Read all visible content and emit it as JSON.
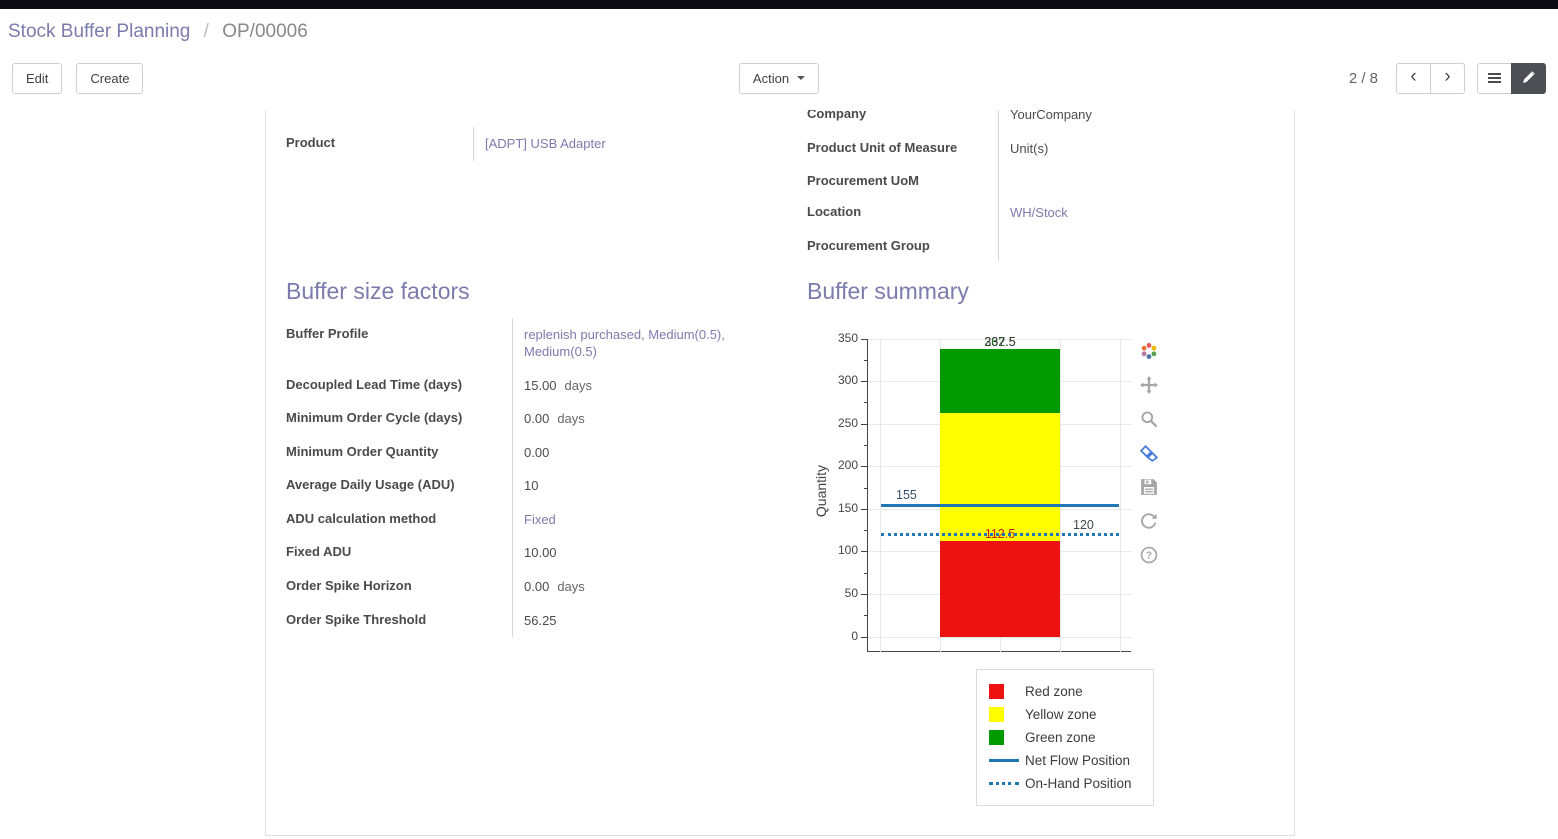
{
  "colors": {
    "accent": "#7c7bad",
    "topbar": "#0b0b11",
    "red_zone": "#ee1111",
    "yellow_zone": "#ffff00",
    "green_zone": "#009a00",
    "flow_line": "#1f77b4"
  },
  "breadcrumb": {
    "parent": "Stock Buffer Planning",
    "separator": "/",
    "current": "OP/00006"
  },
  "control_panel": {
    "edit_label": "Edit",
    "create_label": "Create",
    "action_label": "Action",
    "pager": "2 / 8",
    "prev_icon": "chevron-left",
    "next_icon": "chevron-right",
    "view_switcher_icons": [
      "list-view",
      "form-view"
    ],
    "active_view": "form-view"
  },
  "form": {
    "top_left_fields": [
      {
        "label": "Product",
        "value": "[ADPT] USB Adapter",
        "link": true
      }
    ],
    "top_right_fields": [
      {
        "label": "Company",
        "value": "YourCompany",
        "link": false,
        "clipped": true
      },
      {
        "label": "Product Unit of Measure",
        "value": "Unit(s)",
        "link": false
      },
      {
        "label": "Procurement UoM",
        "value": "",
        "link": false
      },
      {
        "label": "Location",
        "value": "WH/Stock",
        "link": true
      },
      {
        "label": "Procurement Group",
        "value": "",
        "link": false
      }
    ],
    "buffer_factors": {
      "title": "Buffer size factors",
      "rows": [
        {
          "label": "Buffer Profile",
          "value": "replenish purchased, Medium(0.5), Medium(0.5)",
          "link": true
        },
        {
          "label": "Decoupled Lead Time (days)",
          "value": "15.00",
          "suffix": "days"
        },
        {
          "label": "Minimum Order Cycle (days)",
          "value": "0.00",
          "suffix": "days"
        },
        {
          "label": "Minimum Order Quantity",
          "value": "0.00"
        },
        {
          "label": "Average Daily Usage (ADU)",
          "value": "10"
        },
        {
          "label": "ADU calculation method",
          "value": "Fixed",
          "link": true
        },
        {
          "label": "Fixed ADU",
          "value": "10.00"
        },
        {
          "label": "Order Spike Horizon",
          "value": "0.00",
          "suffix": "days"
        },
        {
          "label": "Order Spike Threshold",
          "value": "56.25"
        }
      ]
    },
    "buffer_summary_title": "Buffer summary"
  },
  "chart_data": {
    "type": "bar",
    "title": "",
    "ylabel": "Quantity",
    "ylim": [
      0,
      350
    ],
    "yticks": [
      0,
      50,
      100,
      150,
      200,
      250,
      300,
      350
    ],
    "grid": true,
    "bar_total_label": "337.5",
    "zones": [
      {
        "name": "Red zone",
        "from": 0,
        "to": 112.5,
        "color": "#ee1111",
        "boundary_label": {
          "text": "112.5",
          "color": "#cc2200"
        }
      },
      {
        "name": "Yellow zone",
        "from": 112.5,
        "to": 262.5,
        "color": "#ffff00"
      },
      {
        "name": "Green zone",
        "from": 262.5,
        "to": 337.5,
        "color": "#009a00",
        "boundary_label": {
          "text": "262.5",
          "color": "#1b6e1b"
        }
      }
    ],
    "lines": [
      {
        "name": "Net Flow Position",
        "value": 155,
        "style": "solid",
        "color": "#1f77b4",
        "label": {
          "text": "155",
          "align": "left",
          "color": "#35506e"
        }
      },
      {
        "name": "On-Hand Position",
        "value": 120,
        "style": "dotted",
        "color": "#1f77b4",
        "label": {
          "text": "120",
          "align": "right",
          "color": "#44484f"
        }
      }
    ],
    "legend_position": "bottom-right",
    "legend": [
      {
        "label": "Red zone",
        "swatch": "square",
        "color": "#ee1111"
      },
      {
        "label": "Yellow zone",
        "swatch": "square",
        "color": "#ffff00"
      },
      {
        "label": "Green zone",
        "swatch": "square",
        "color": "#009a00"
      },
      {
        "label": "Net Flow Position",
        "swatch": "line",
        "color": "#1f77b4"
      },
      {
        "label": "On-Hand Position",
        "swatch": "dotted-line",
        "color": "#1f77b4"
      }
    ],
    "toolbar_icons": [
      "plotly-logo",
      "pan",
      "zoom",
      "compare-hover",
      "save",
      "reset-axes",
      "help"
    ]
  }
}
